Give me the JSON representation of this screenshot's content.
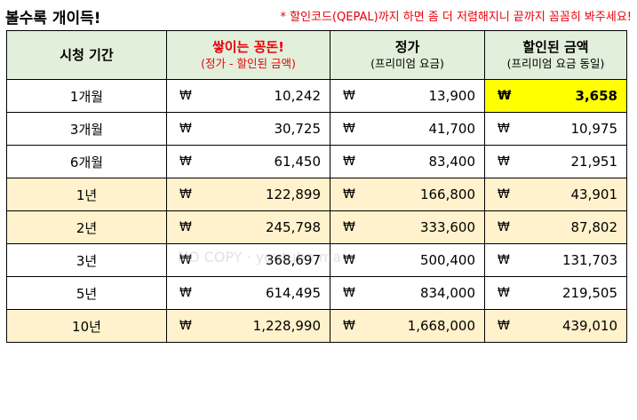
{
  "title": "볼수록 개이득!",
  "notice": "* 할인코드(QEPAL)까지 하면 좀 더 저렴해지니 끝까지 꼼꼼히 봐주세요!",
  "currency": "₩",
  "watermark": "NO COPY · youtube ma",
  "colors": {
    "header_bg": "#e2efda",
    "highlight_row_bg": "#fff2cc",
    "best_cell_bg": "#ffff00",
    "accent_red": "#e8000b"
  },
  "headers": [
    {
      "main": "시청 기간",
      "sub": ""
    },
    {
      "main": "쌓이는 꽁돈!",
      "sub": "(정가 - 할인된 금액)"
    },
    {
      "main": "정가",
      "sub": "(프리미엄 요금)"
    },
    {
      "main": "할인된 금액",
      "sub": "(프리미엄 요금 동일)"
    }
  ],
  "rows": [
    {
      "period": "1개월",
      "savings": "10,242",
      "list_price": "13,900",
      "discounted": "3,658"
    },
    {
      "period": "3개월",
      "savings": "30,725",
      "list_price": "41,700",
      "discounted": "10,975"
    },
    {
      "period": "6개월",
      "savings": "61,450",
      "list_price": "83,400",
      "discounted": "21,951"
    },
    {
      "period": "1년",
      "savings": "122,899",
      "list_price": "166,800",
      "discounted": "43,901"
    },
    {
      "period": "2년",
      "savings": "245,798",
      "list_price": "333,600",
      "discounted": "87,802"
    },
    {
      "period": "3년",
      "savings": "368,697",
      "list_price": "500,400",
      "discounted": "131,703"
    },
    {
      "period": "5년",
      "savings": "614,495",
      "list_price": "834,000",
      "discounted": "219,505"
    },
    {
      "period": "10년",
      "savings": "1,228,990",
      "list_price": "1,668,000",
      "discounted": "439,010"
    }
  ]
}
